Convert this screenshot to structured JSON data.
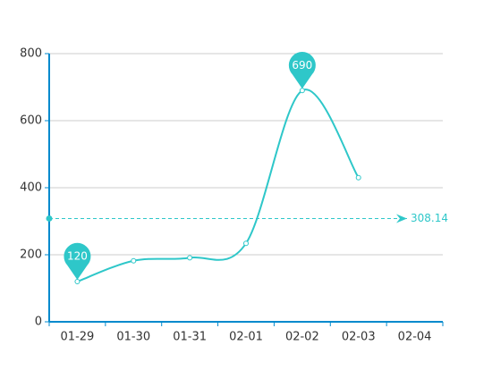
{
  "chart_data": {
    "type": "line",
    "categories": [
      "01-29",
      "01-30",
      "01-31",
      "02-01",
      "02-02",
      "02-03",
      "02-04"
    ],
    "series": [
      {
        "color": "#2ec7c9",
        "values": [
          120,
          182,
          191,
          234,
          690,
          430,
          null
        ]
      }
    ],
    "mark_points": [
      0,
      4
    ],
    "mark_line": {
      "value": 308.14
    },
    "ylim": [
      0,
      800
    ],
    "yticks": [
      0,
      200,
      400,
      600,
      800
    ],
    "grid": true,
    "smooth": true,
    "axis_color": "#008acd"
  }
}
